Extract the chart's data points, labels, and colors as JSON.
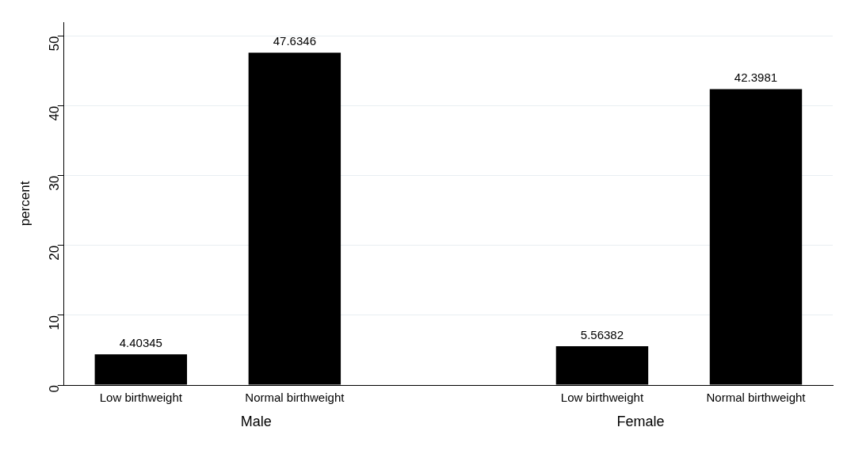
{
  "chart_data": {
    "type": "bar",
    "ylabel": "percent",
    "categories": [
      "Low birthweight",
      "Normal birthweight",
      null,
      "Low birthweight",
      "Normal birthweight"
    ],
    "values": [
      4.40345,
      47.6346,
      null,
      5.56382,
      42.3981
    ],
    "color": "#000000",
    "ylim": [
      0,
      52
    ],
    "yticks": [
      0,
      10,
      20,
      30,
      40,
      50
    ],
    "grid": "y",
    "data_labels": true,
    "legend": false,
    "annotations": [
      "Male",
      "Female"
    ]
  }
}
